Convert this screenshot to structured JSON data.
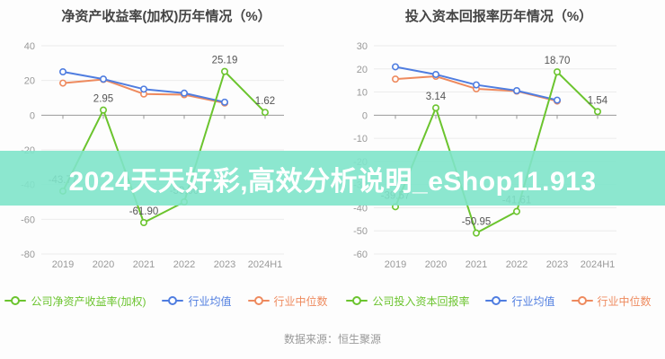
{
  "banner": {
    "text": "2024天天好彩,高效分析说明_eShop11.913",
    "bg_color": "#80e4ca",
    "text_color": "#ffffff"
  },
  "footer": {
    "source_label": "数据来源：恒生聚源"
  },
  "colors": {
    "company": "#6bc42e",
    "industry_avg": "#4f7de0",
    "industry_median": "#ee8a5e",
    "grid": "#ececec",
    "zero_axis": "#999999",
    "tick_text": "#999999",
    "data_label": "#555555"
  },
  "chart_data": [
    {
      "type": "line",
      "title": "净资产收益率(加权)历年情况（%）",
      "categories": [
        "2019",
        "2020",
        "2021",
        "2022",
        "2023",
        "2024H1"
      ],
      "ylim": [
        -80,
        40
      ],
      "ytick_step": 20,
      "grid": true,
      "legend_position": "bottom",
      "series": [
        {
          "name": "公司净资产收益率(加权)",
          "color_key": "company",
          "values": [
            -43.77,
            2.95,
            -61.9,
            -50.0,
            25.19,
            1.62
          ],
          "labels": [
            "-43.77",
            "2.95",
            "-61.90",
            "-50.00",
            "25.19",
            "1.62"
          ]
        },
        {
          "name": "行业均值",
          "color_key": "industry_avg",
          "values": [
            25.0,
            20.8,
            15.0,
            12.7,
            7.5,
            null
          ]
        },
        {
          "name": "行业中位数",
          "color_key": "industry_median",
          "values": [
            18.5,
            20.6,
            12.2,
            11.8,
            7.0,
            null
          ]
        }
      ]
    },
    {
      "type": "line",
      "title": "投入资本回报率历年情况（%）",
      "categories": [
        "2019",
        "2020",
        "2021",
        "2022",
        "2023",
        "2024H1"
      ],
      "ylim": [
        -60,
        30
      ],
      "ytick_step": 10,
      "grid": true,
      "legend_position": "bottom",
      "series": [
        {
          "name": "公司投入资本回报率",
          "color_key": "company",
          "values": [
            -39.57,
            3.14,
            -50.95,
            -41.61,
            18.7,
            1.54
          ],
          "labels": [
            "-39.57",
            "3.14",
            "-50.95",
            "-41.61",
            "18.70",
            "1.54"
          ]
        },
        {
          "name": "行业均值",
          "color_key": "industry_avg",
          "values": [
            20.9,
            17.6,
            13.1,
            10.6,
            6.5,
            null
          ]
        },
        {
          "name": "行业中位数",
          "color_key": "industry_median",
          "values": [
            15.6,
            16.8,
            11.4,
            10.4,
            6.1,
            null
          ]
        }
      ]
    }
  ]
}
